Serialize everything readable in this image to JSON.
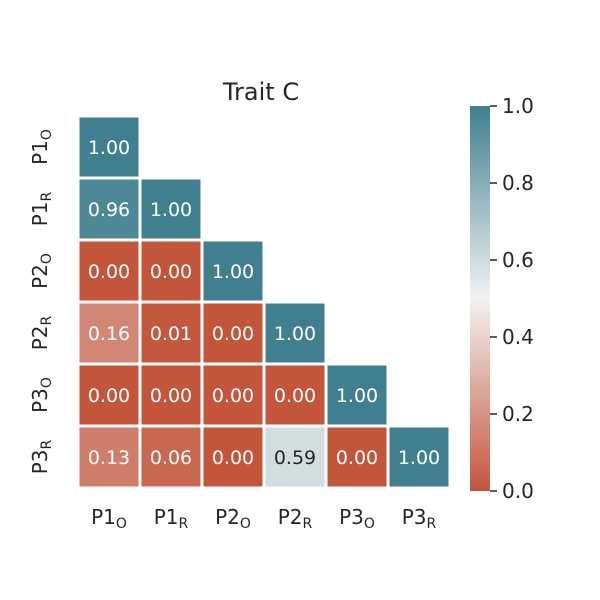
{
  "chart_data": {
    "type": "heatmap",
    "title": "Trait C",
    "categories": [
      {
        "base": "P1",
        "sub": "O"
      },
      {
        "base": "P1",
        "sub": "R"
      },
      {
        "base": "P2",
        "sub": "O"
      },
      {
        "base": "P2",
        "sub": "R"
      },
      {
        "base": "P3",
        "sub": "O"
      },
      {
        "base": "P3",
        "sub": "R"
      }
    ],
    "matrix": [
      [
        1.0
      ],
      [
        0.96,
        1.0
      ],
      [
        0.0,
        0.0,
        1.0
      ],
      [
        0.16,
        0.01,
        0.0,
        1.0
      ],
      [
        0.0,
        0.0,
        0.0,
        0.0,
        1.0
      ],
      [
        0.13,
        0.06,
        0.0,
        0.59,
        0.0,
        1.0
      ]
    ],
    "value_format_decimals": 2,
    "colorbar": {
      "range": [
        0.0,
        1.0
      ],
      "ticks": [
        "0.0",
        "0.2",
        "0.4",
        "0.6",
        "0.8",
        "1.0"
      ],
      "colors": {
        "low": "#c3553a",
        "mid": "#f2f2f2",
        "high": "#3f7f8f"
      }
    },
    "mask": "upper-triangle"
  }
}
